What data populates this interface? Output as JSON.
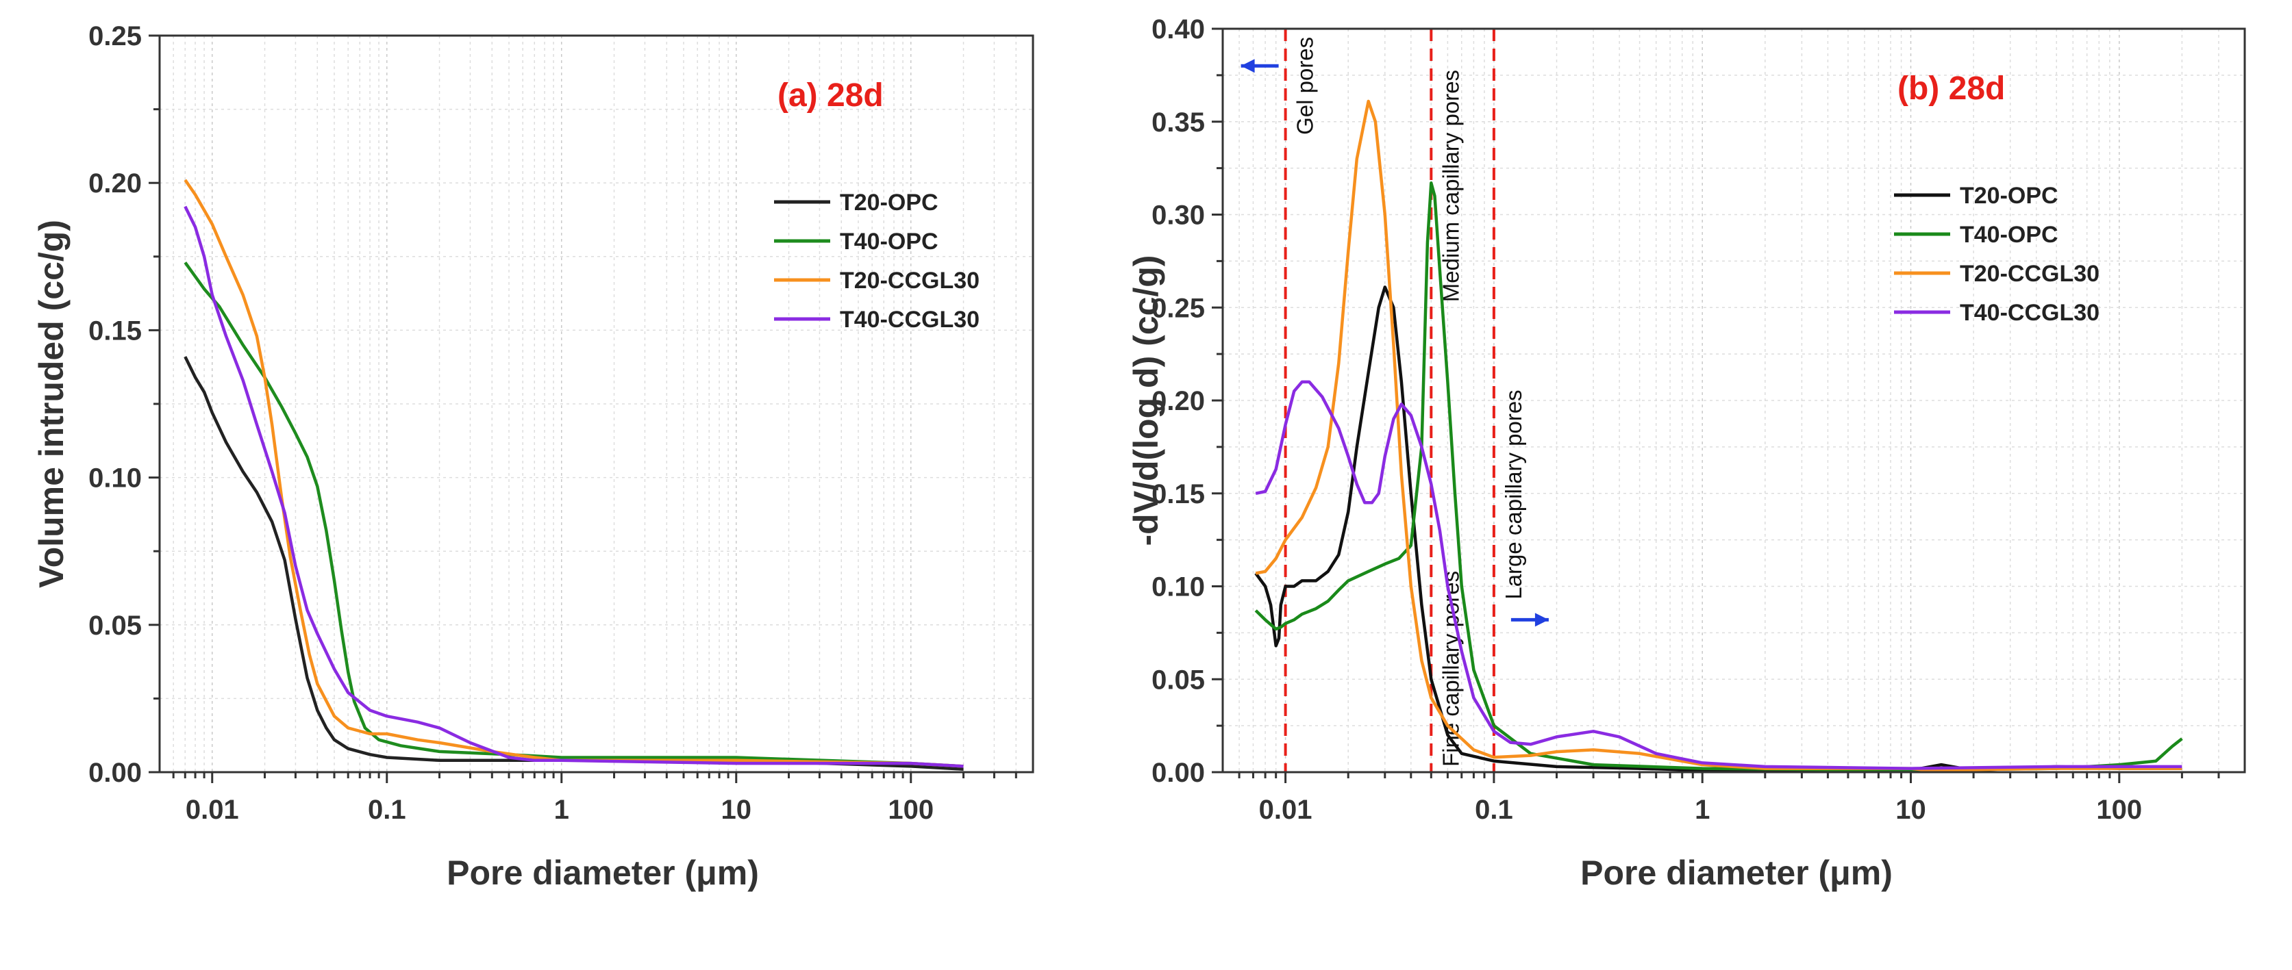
{
  "chart_data": [
    {
      "type": "line",
      "title": "(a) 28d",
      "title_color": "#e8201a",
      "xlabel": "Pore diameter (μm)",
      "ylabel": "Volume intruded (cc/g)",
      "xscale": "log",
      "xlim": [
        0.005,
        500
      ],
      "ylim": [
        0,
        0.25
      ],
      "grid": true,
      "legend_position": "top-right",
      "xticks": [
        0.01,
        0.1,
        1,
        10,
        100
      ],
      "xtick_labels": [
        "0.01",
        "0.1",
        "1",
        "10",
        "100"
      ],
      "yticks": [
        0,
        0.05,
        0.1,
        0.15,
        0.2,
        0.25
      ],
      "ytick_labels": [
        "0.00",
        "0.05",
        "0.10",
        "0.15",
        "0.20",
        "0.25"
      ],
      "series": [
        {
          "name": "T20-OPC",
          "color": "#222222",
          "points": [
            [
              0.007,
              0.141
            ],
            [
              0.008,
              0.134
            ],
            [
              0.009,
              0.129
            ],
            [
              0.01,
              0.122
            ],
            [
              0.012,
              0.112
            ],
            [
              0.015,
              0.102
            ],
            [
              0.018,
              0.095
            ],
            [
              0.022,
              0.085
            ],
            [
              0.026,
              0.072
            ],
            [
              0.03,
              0.052
            ],
            [
              0.035,
              0.032
            ],
            [
              0.04,
              0.021
            ],
            [
              0.045,
              0.015
            ],
            [
              0.05,
              0.011
            ],
            [
              0.06,
              0.008
            ],
            [
              0.08,
              0.006
            ],
            [
              0.1,
              0.005
            ],
            [
              0.2,
              0.004
            ],
            [
              0.5,
              0.004
            ],
            [
              1,
              0.004
            ],
            [
              10,
              0.004
            ],
            [
              100,
              0.002
            ],
            [
              200,
              0.001
            ]
          ]
        },
        {
          "name": "T40-OPC",
          "color": "#1e8c1e",
          "points": [
            [
              0.007,
              0.173
            ],
            [
              0.009,
              0.164
            ],
            [
              0.011,
              0.158
            ],
            [
              0.015,
              0.145
            ],
            [
              0.02,
              0.134
            ],
            [
              0.025,
              0.124
            ],
            [
              0.03,
              0.115
            ],
            [
              0.035,
              0.107
            ],
            [
              0.04,
              0.097
            ],
            [
              0.045,
              0.082
            ],
            [
              0.05,
              0.065
            ],
            [
              0.055,
              0.048
            ],
            [
              0.06,
              0.034
            ],
            [
              0.065,
              0.024
            ],
            [
              0.075,
              0.015
            ],
            [
              0.09,
              0.011
            ],
            [
              0.12,
              0.009
            ],
            [
              0.2,
              0.007
            ],
            [
              0.5,
              0.006
            ],
            [
              1,
              0.005
            ],
            [
              10,
              0.005
            ],
            [
              100,
              0.003
            ],
            [
              200,
              0.002
            ]
          ]
        },
        {
          "name": "T20-CCGL30",
          "color": "#f7901e",
          "points": [
            [
              0.007,
              0.201
            ],
            [
              0.008,
              0.196
            ],
            [
              0.01,
              0.186
            ],
            [
              0.012,
              0.175
            ],
            [
              0.015,
              0.162
            ],
            [
              0.018,
              0.148
            ],
            [
              0.02,
              0.134
            ],
            [
              0.022,
              0.118
            ],
            [
              0.025,
              0.093
            ],
            [
              0.028,
              0.073
            ],
            [
              0.032,
              0.055
            ],
            [
              0.036,
              0.04
            ],
            [
              0.04,
              0.03
            ],
            [
              0.05,
              0.019
            ],
            [
              0.06,
              0.015
            ],
            [
              0.08,
              0.013
            ],
            [
              0.1,
              0.013
            ],
            [
              0.15,
              0.011
            ],
            [
              0.2,
              0.01
            ],
            [
              0.4,
              0.007
            ],
            [
              0.7,
              0.005
            ],
            [
              1,
              0.004
            ],
            [
              10,
              0.004
            ],
            [
              100,
              0.003
            ],
            [
              200,
              0.002
            ]
          ]
        },
        {
          "name": "T40-CCGL30",
          "color": "#8a2be2",
          "points": [
            [
              0.007,
              0.192
            ],
            [
              0.008,
              0.185
            ],
            [
              0.009,
              0.175
            ],
            [
              0.01,
              0.162
            ],
            [
              0.012,
              0.148
            ],
            [
              0.015,
              0.133
            ],
            [
              0.018,
              0.118
            ],
            [
              0.022,
              0.102
            ],
            [
              0.026,
              0.088
            ],
            [
              0.03,
              0.07
            ],
            [
              0.035,
              0.055
            ],
            [
              0.04,
              0.047
            ],
            [
              0.05,
              0.035
            ],
            [
              0.06,
              0.027
            ],
            [
              0.08,
              0.021
            ],
            [
              0.1,
              0.019
            ],
            [
              0.15,
              0.017
            ],
            [
              0.2,
              0.015
            ],
            [
              0.3,
              0.01
            ],
            [
              0.5,
              0.005
            ],
            [
              0.7,
              0.004
            ],
            [
              1,
              0.004
            ],
            [
              10,
              0.003
            ],
            [
              100,
              0.003
            ],
            [
              200,
              0.002
            ]
          ]
        }
      ]
    },
    {
      "type": "line",
      "title": "(b) 28d",
      "title_color": "#e8201a",
      "xlabel": "Pore diameter (μm)",
      "ylabel": "-dV/d(log d) (cc/g)",
      "xscale": "log",
      "xlim": [
        0.005,
        400
      ],
      "ylim": [
        0,
        0.4
      ],
      "grid": true,
      "legend_position": "top-right",
      "xticks": [
        0.01,
        0.1,
        1,
        10,
        100
      ],
      "xtick_labels": [
        "0.01",
        "0.1",
        "1",
        "10",
        "100"
      ],
      "yticks": [
        0,
        0.05,
        0.1,
        0.15,
        0.2,
        0.25,
        0.3,
        0.35,
        0.4
      ],
      "ytick_labels": [
        "0.00",
        "0.05",
        "0.10",
        "0.15",
        "0.20",
        "0.25",
        "0.30",
        "0.35",
        "0.40"
      ],
      "reference_lines": [
        {
          "x": 0.01,
          "label": "Gel pores",
          "label_y": 0.34,
          "arrow": "left"
        },
        {
          "x": 0.05,
          "label": "Fine capillary pores",
          "label_y": 0.0,
          "arrow": ""
        },
        {
          "x": 0.05,
          "label": "Medium capillary pores",
          "label_y": 0.25,
          "arrow": ""
        },
        {
          "x": 0.1,
          "label": "Large capillary pores",
          "label_y": 0.09,
          "arrow": "right"
        }
      ],
      "series": [
        {
          "name": "T20-OPC",
          "color": "#111111",
          "points": [
            [
              0.0072,
              0.107
            ],
            [
              0.008,
              0.1
            ],
            [
              0.0085,
              0.09
            ],
            [
              0.009,
              0.068
            ],
            [
              0.0093,
              0.072
            ],
            [
              0.0095,
              0.09
            ],
            [
              0.01,
              0.1
            ],
            [
              0.011,
              0.1
            ],
            [
              0.012,
              0.103
            ],
            [
              0.014,
              0.103
            ],
            [
              0.016,
              0.108
            ],
            [
              0.018,
              0.117
            ],
            [
              0.02,
              0.14
            ],
            [
              0.022,
              0.175
            ],
            [
              0.025,
              0.215
            ],
            [
              0.028,
              0.25
            ],
            [
              0.03,
              0.261
            ],
            [
              0.033,
              0.25
            ],
            [
              0.036,
              0.21
            ],
            [
              0.04,
              0.15
            ],
            [
              0.045,
              0.09
            ],
            [
              0.05,
              0.05
            ],
            [
              0.06,
              0.02
            ],
            [
              0.07,
              0.01
            ],
            [
              0.1,
              0.006
            ],
            [
              0.2,
              0.003
            ],
            [
              0.5,
              0.002
            ],
            [
              1,
              0.001
            ],
            [
              10,
              0.001
            ],
            [
              14,
              0.004
            ],
            [
              20,
              0.001
            ],
            [
              50,
              0.003
            ],
            [
              100,
              0.002
            ],
            [
              200,
              0.002
            ]
          ]
        },
        {
          "name": "T40-OPC",
          "color": "#1a8a1a",
          "points": [
            [
              0.0072,
              0.087
            ],
            [
              0.008,
              0.082
            ],
            [
              0.009,
              0.077
            ],
            [
              0.0095,
              0.078
            ],
            [
              0.01,
              0.08
            ],
            [
              0.011,
              0.082
            ],
            [
              0.012,
              0.085
            ],
            [
              0.014,
              0.088
            ],
            [
              0.016,
              0.092
            ],
            [
              0.018,
              0.098
            ],
            [
              0.02,
              0.103
            ],
            [
              0.025,
              0.108
            ],
            [
              0.03,
              0.112
            ],
            [
              0.035,
              0.115
            ],
            [
              0.04,
              0.122
            ],
            [
              0.045,
              0.175
            ],
            [
              0.048,
              0.285
            ],
            [
              0.05,
              0.317
            ],
            [
              0.052,
              0.31
            ],
            [
              0.055,
              0.27
            ],
            [
              0.06,
              0.21
            ],
            [
              0.065,
              0.15
            ],
            [
              0.07,
              0.1
            ],
            [
              0.08,
              0.055
            ],
            [
              0.1,
              0.025
            ],
            [
              0.15,
              0.01
            ],
            [
              0.3,
              0.004
            ],
            [
              1,
              0.002
            ],
            [
              10,
              0.001
            ],
            [
              50,
              0.002
            ],
            [
              100,
              0.004
            ],
            [
              150,
              0.006
            ],
            [
              180,
              0.014
            ],
            [
              200,
              0.018
            ]
          ]
        },
        {
          "name": "T20-CCGL30",
          "color": "#f7901e",
          "points": [
            [
              0.0072,
              0.107
            ],
            [
              0.008,
              0.108
            ],
            [
              0.009,
              0.115
            ],
            [
              0.01,
              0.125
            ],
            [
              0.012,
              0.137
            ],
            [
              0.014,
              0.153
            ],
            [
              0.016,
              0.175
            ],
            [
              0.018,
              0.22
            ],
            [
              0.02,
              0.28
            ],
            [
              0.022,
              0.33
            ],
            [
              0.025,
              0.361
            ],
            [
              0.027,
              0.35
            ],
            [
              0.03,
              0.3
            ],
            [
              0.033,
              0.23
            ],
            [
              0.036,
              0.16
            ],
            [
              0.04,
              0.1
            ],
            [
              0.045,
              0.06
            ],
            [
              0.05,
              0.04
            ],
            [
              0.06,
              0.025
            ],
            [
              0.08,
              0.012
            ],
            [
              0.1,
              0.008
            ],
            [
              0.15,
              0.009
            ],
            [
              0.2,
              0.011
            ],
            [
              0.3,
              0.012
            ],
            [
              0.5,
              0.01
            ],
            [
              1,
              0.004
            ],
            [
              2,
              0.002
            ],
            [
              10,
              0.002
            ],
            [
              12,
              0.001
            ],
            [
              50,
              0.002
            ],
            [
              100,
              0.002
            ],
            [
              200,
              0.002
            ]
          ]
        },
        {
          "name": "T40-CCGL30",
          "color": "#8a2be2",
          "points": [
            [
              0.0072,
              0.15
            ],
            [
              0.008,
              0.151
            ],
            [
              0.009,
              0.163
            ],
            [
              0.01,
              0.187
            ],
            [
              0.011,
              0.205
            ],
            [
              0.012,
              0.21
            ],
            [
              0.013,
              0.21
            ],
            [
              0.015,
              0.202
            ],
            [
              0.018,
              0.185
            ],
            [
              0.02,
              0.17
            ],
            [
              0.022,
              0.155
            ],
            [
              0.024,
              0.145
            ],
            [
              0.026,
              0.145
            ],
            [
              0.028,
              0.15
            ],
            [
              0.03,
              0.17
            ],
            [
              0.033,
              0.19
            ],
            [
              0.036,
              0.198
            ],
            [
              0.04,
              0.192
            ],
            [
              0.045,
              0.175
            ],
            [
              0.05,
              0.155
            ],
            [
              0.055,
              0.13
            ],
            [
              0.06,
              0.1
            ],
            [
              0.07,
              0.065
            ],
            [
              0.08,
              0.04
            ],
            [
              0.1,
              0.022
            ],
            [
              0.12,
              0.016
            ],
            [
              0.15,
              0.015
            ],
            [
              0.2,
              0.019
            ],
            [
              0.3,
              0.022
            ],
            [
              0.4,
              0.019
            ],
            [
              0.6,
              0.01
            ],
            [
              1,
              0.005
            ],
            [
              2,
              0.003
            ],
            [
              10,
              0.002
            ],
            [
              50,
              0.003
            ],
            [
              100,
              0.003
            ],
            [
              200,
              0.003
            ]
          ]
        }
      ]
    }
  ]
}
